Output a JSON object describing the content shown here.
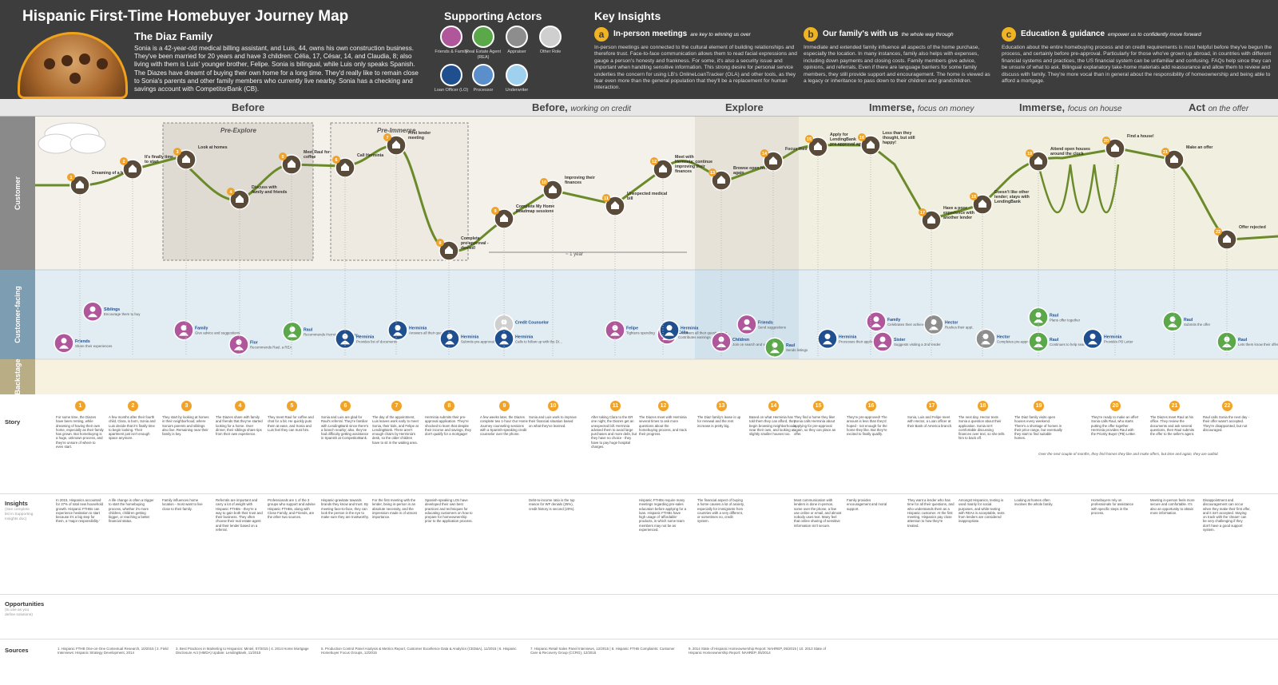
{
  "header": {
    "title": "Hispanic First-Time Homebuyer Journey Map",
    "family_title": "The Diaz Family",
    "family_text": "Sonia is a 42-year-old medical billing assistant, and Luis, 44, owns his own construction business. They've been married for 20 years and have 3 children: Célia, 17, César, 14, and Claudia, 8; also living with them is Luis' younger brother, Felipe. Sonia is bilingual, while Luis only speaks Spanish. The Diazes have dreamt of buying their own home for a long time. They'd really like to remain close to Sonia's parents and other family members who currently live nearby. Sonia has a checking and savings account with CompetitorBank (CB)."
  },
  "actors": {
    "title": "Supporting Actors",
    "items": [
      {
        "label": "Friends & Family",
        "color": "#b0579c"
      },
      {
        "label": "Real Estate Agent (REA)",
        "color": "#5aa84a"
      },
      {
        "label": "Appraiser",
        "color": "#8d8d8d"
      },
      {
        "label": "Other Role",
        "color": "#cfcfcf"
      },
      {
        "label": "Loan Officer (LO)",
        "color": "#1f4f8f"
      },
      {
        "label": "Processor",
        "color": "#5b8fcc"
      },
      {
        "label": "Underwriter",
        "color": "#9fd0ee"
      }
    ]
  },
  "insights": {
    "title": "Key Insights",
    "items": [
      {
        "badge": "a",
        "heading": "In-person meetings",
        "sub": "are key to winning us over",
        "text": "In-person meetings are connected to the cultural element of building relationships and therefore trust. Face-to-face communication allows them to read facial expressions and gauge a person's honesty and frankness. For some, it's also a security issue and important when handling sensitive information. This strong desire for personal service underlies the concern for using LB's OnlineLoanTracker (OLA) and other tools, as they fear even more than the general population that they'll be a replacement for human interaction."
      },
      {
        "badge": "b",
        "heading": "Our family's with us",
        "sub": "the whole way through",
        "text": "Immediate and extended family influence all aspects of the home purchase, especially the location. In many instances, family also helps with expenses, including down payments and closing costs. Family members give advice, opinions, and referrals. Even if there are language barriers for some family members, they still provide support and encouragement. The home is viewed as a legacy or inheritance to pass down to their children and grandchildren."
      },
      {
        "badge": "c",
        "heading": "Education & guidance",
        "sub": "empower us to confidently move forward",
        "text": "Education about the entire homebuying process and on credit requirements is most helpful before they've begun the process, and certainly before pre-approval. Particularly for those who've grown up abroad, in countries with different financial systems and practices, the US financial system can be unfamiliar and confusing. FAQs help since they can be unsure of what to ask. Bilingual explanatory take-home materials add reassurance and allow them to review and discuss with family. They're more vocal than in general about the responsibility of homeownership and being able to afford a mortgage."
      }
    ]
  },
  "phases": [
    {
      "name": "Before",
      "sub": ""
    },
    {
      "name": "Before,",
      "sub": "working on credit"
    },
    {
      "name": "Explore",
      "sub": ""
    },
    {
      "name": "Immerse,",
      "sub": "focus on money"
    },
    {
      "name": "Immerse,",
      "sub": "focus on house"
    },
    {
      "name": "Act",
      "sub": "on the offer"
    }
  ],
  "lanes": {
    "customer": "Customer",
    "facing": "Customer-facing",
    "backstage": "Backstage"
  },
  "subphases": [
    "Pre-Explore",
    "Pre-Immerse"
  ],
  "timegap": "~ 1 year",
  "steps": [
    {
      "n": "1",
      "label": "Dreaming of a home"
    },
    {
      "n": "2",
      "label": "It's finally time to start"
    },
    {
      "n": "3",
      "label": "Look at homes"
    },
    {
      "n": "4",
      "label": "Discuss with family and friends"
    },
    {
      "n": "5",
      "label": "Meet Raul for coffee"
    },
    {
      "n": "6",
      "label": "Call Herminia"
    },
    {
      "n": "7",
      "label": "First lender meeting"
    },
    {
      "n": "8",
      "label": "Complete pre-approval - denied!"
    },
    {
      "n": "9",
      "label": "Complete My Home Roadmap sessions"
    },
    {
      "n": "10",
      "label": "Improving their finances"
    },
    {
      "n": "11",
      "label": "Unexpected medical bill"
    },
    {
      "n": "12",
      "label": "Meet with Herminia; continue improving their finances"
    },
    {
      "n": "13",
      "label": "Browse open houses again"
    },
    {
      "n": "14",
      "label": "Focus their search"
    },
    {
      "n": "15",
      "label": "Apply for LendingBank pre-approval again"
    },
    {
      "n": "16",
      "label": "Less than they thought, but still happy!"
    },
    {
      "n": "17",
      "label": "Have a poor experience with another lender"
    },
    {
      "n": "18",
      "label": "Doesn't like other lender; stays with LendingBank"
    },
    {
      "n": "19",
      "label": "Attend open houses around the clock"
    },
    {
      "n": "20",
      "label": "Find a house!"
    },
    {
      "n": "21",
      "label": "Make an offer"
    },
    {
      "n": "22",
      "label": "Offer rejected"
    }
  ],
  "facing": [
    {
      "name": "Siblings",
      "desc": "Encourage them to buy"
    },
    {
      "name": "Friends",
      "desc": "Share their experiences"
    },
    {
      "name": "Family",
      "desc": "Give advice and suggestions"
    },
    {
      "name": "Flor",
      "desc": "Recommends Raul, a REA"
    },
    {
      "name": "Raul",
      "desc": "Recommends Herminia, a LendingBank Loan Officer (LO)"
    },
    {
      "name": "Herminia",
      "desc": "Provides list of documents"
    },
    {
      "name": "Herminia",
      "desc": "Answers all their questions in both English and Spanish"
    },
    {
      "name": "Herminia",
      "desc": "Submits pre-approval"
    },
    {
      "name": "Credit Counselor",
      "desc": ""
    },
    {
      "name": "Herminia",
      "desc": "Calls to follow up with the Diazes"
    },
    {
      "name": "Felipe",
      "desc": "Tightens spending"
    },
    {
      "name": "Célia",
      "desc": "Contributes earnings"
    },
    {
      "name": "Herminia",
      "desc": "Answers all their questions and explains their options"
    },
    {
      "name": "Children",
      "desc": "Join on search and visits"
    },
    {
      "name": "Friends",
      "desc": "Send suggestions"
    },
    {
      "name": "Raul",
      "desc": "Sends listings"
    },
    {
      "name": "Herminia",
      "desc": "Processes their application"
    },
    {
      "name": "Family",
      "desc": "Celebrates their achievement"
    },
    {
      "name": "Sister",
      "desc": "Suggests visiting a 2nd lender"
    },
    {
      "name": "Hector",
      "desc": "Rushes their appt."
    },
    {
      "name": "Hector",
      "desc": "Completes pre-approval"
    },
    {
      "name": "Raul",
      "desc": "Plans offer together"
    },
    {
      "name": "Raul",
      "desc": "Continues to help search for houses"
    },
    {
      "name": "Herminia",
      "desc": "Provides PB Letter"
    },
    {
      "name": "Raul",
      "desc": "Submits the offer"
    },
    {
      "name": "Raul",
      "desc": "Lets them know their offer wasn't accepted"
    }
  ],
  "rows": {
    "story": "Story",
    "insights": "Insights",
    "insights_sub": "(See complete list in Supporting Insights doc)",
    "opps": "Opportunities",
    "opps_sub": "(to use as you define solutions)",
    "sources": "Sources"
  },
  "stories": [
    "For some time, the Diazes have been renting, while dreaming of having their own home, especially as their family has grown. But homebuying is a huge, unknown process, and they're unsure of where to even start.",
    "A few months after their fourth child, Clara, is born, Sonia and Luis decide that it's finally time to begin looking. Their apartment just isn't enough space anymore.",
    "They start by looking at homes in their neighborhood, where Sonia's parents and siblings also live. Remaining near their family is key.",
    "The Diazes share with family and friends that they've started looking for a home. Over dinner, their siblings share tips from their own experience.",
    "They meet Raul for coffee and chat for a bit. He quickly puts them at ease, and Sonia and Luis feel they can trust him.",
    "Sonia and Luis are glad for Raul's referral. They're familiar with LendingBank since there's a branch nearby; also, they've had difficulty getting assistance in Spanish at CompetitorBank.",
    "The day of the appointment, Luis leaves work early to meet Sonia, their kids, and Felipe at LendingBank. There aren't enough chairs by Herminia's desk, so the older children have to sit in the waiting area.",
    "Herminia submits their pre-approval application. They're shocked to learn that despite their income and savings, they don't qualify for a mortgage!",
    "A few weeks later, the Diazes complete two 1-hour Our Home Journey counseling sessions with a Spanish-speaking credit counselor over the phone.",
    "Sonia and Luis work to improve their financial situation based on what they've learned.",
    "After taking Clara to the ER one night, the Diazes get an unexpected bill. Herminia advised them to avoid large purchases and more debt, but they have no choice - they have to pay huge hospital charges.",
    "The Diazes meet with Herminia several times to ask more questions about the homebuying process, and track their progress.",
    "The Diaz family's lease is up for renewal and the rent increase is pretty big.",
    "Based on what Herminia has told them they can afford, they begin browsing neighborhoods near their own, and looking at slightly smaller houses too.",
    "They find a home they like! Sonia calls Herminia about applying for pre-approval again, so they can place an offer.",
    "They're pre-approved! The amount is less than they'd hoped - not enough for the home they like. But they're excited to finally qualify.",
    "Sonia, Luis and Felipe meet with Hector, a Loan officer at their Bank of America branch.",
    "The next day, Hector texts Sonia a question about their application. Sonia isn't comfortable discussing finances over text, so she tells him to back off.",
    "The Diaz family visits open houses every weekend. There's a shortage of homes in their price range, but eventually they start to find suitable homes.",
    "They're ready to make an offer! Sonia calls Raul, who starts putting the offer together. Herminia provides Raul with the Priority Buyer (PB) Letter.",
    "The Diazes meet Raul at his office. They review the documents and ask several questions, then Raul submits the offer to the seller's agent.",
    "Raul calls Sonia the next day - their offer wasn't accepted. They're disappointed, but not discouraged."
  ],
  "insight_texts": [
    "In 2015, Hispanics accounted for 37% of total new household growth. Hispanic FTHBs can experience hesitation to start because it's a big step for them, a 'major responsibility.'",
    "A life change is often a trigger to start the homebuying process, whether it's more children, children getting bigger, or reaching a better financial status.",
    "Family influences home location - most want to live close to their family.",
    "Referrals are important and carry a lot of weight with Hispanic FTHBs - they're a way to gain both their trust and their business. They often choose their real estate agent and their lender based on a referral.",
    "Professionals are 1 of the 3 groups who support and advise Hispanic FTHBs, along with Close Family, and Friends, are the other two sources.",
    "Hispanic-gravitate towards brands they know and trust. By meeting face-to-face, they can look the person in the eye to make sure they are trustworthy.",
    "For the first meeting with the lender, being in-person is an absolute necessity, and the impression made is of utmost importance.",
    "Spanish-speaking LOs have developed their own best practices and techniques for educating customers on how to prepare for homeownership prior to the application process.",
    "",
    "Debt-to-income ratio is the top reason for WF denials (25%), credit history is second (20%).",
    "",
    "Hispanic FTHBs require many meetings regarding pre-sales education before applying for a loan. Hispanic FTHBs have high usage of 'affordable' products, in which some team members may not be as experienced.",
    "The financial aspect of buying a home causes a lot of anxiety, especially for immigrants from countries with a very different, or sometimes no, credit system.",
    "",
    "Most communication with lenders is done in-person, some over the phone, a few use online or email, and almost nobody uses text. Many feel that online sharing of sensitive information isn't secure.",
    "Family provides encouragement and moral support.",
    "They want a lender who has time for all their questions, and who understands them as a Hispanic customer. At the first meeting, Hispanics pay close attention to how they're treated.",
    "Amongst Hispanics, texting is used mainly for social purposes, and while texting with REAs is acceptable, texts from lenders are considered inappropriate.",
    "Looking at homes often involves the whole family.",
    "Homebuyers rely on professionals for assistance with specific steps in the process.",
    "Meeting in-person feels more secure and comfortable. It's also an opportunity to obtain more information.",
    "Disappointment and discouragement can occur when they make their first offer, and it isn't accepted. Staying on track with the 'dream' can be very challenging if they don't have a good support system."
  ],
  "sources": [
    "1. Hispanic FTHB One-on-One Contextual Research, 10/2015 | 2. Field Interviews: Hispanic Strategy Development, 2014",
    "3. Best Practices in Marketing to Hispanics: Mintel, 07/2015 | 4. 2014 Home Mortgage Disclosure Act (HMDA) Update: LendingBank, 11/2015",
    "5. Production Control Panel Analysis & Metrics Report, Customer Excellence Data & Analytics (CED&A), 11/2015 | 6. Hispanic Homebuyer Focus Groups, 12/2015",
    "7. Hispanic Retail Sales Panel Interviews, 12/2015 | 8. Hispanic FTHB Complaints: Customer Care & Recovery Group (CCRG), 12/2015",
    "9. 2014 State of Hispanic Homeownership Report: NAHREP, 05/2015 | 10. 2013 State of Hispanic Homeownership Report: NAHREP, 05/2014"
  ],
  "annotations": {
    "next_months": "Over the next couple of months, they find homes they like and make offers, but time and again, they are outbid."
  },
  "colors": {
    "accent": "#f0a32a",
    "dark": "#3d3d3d",
    "line": "#6b8a2a",
    "customer_bg": "#f3efe6",
    "facing_bg": "#e3eef4"
  }
}
